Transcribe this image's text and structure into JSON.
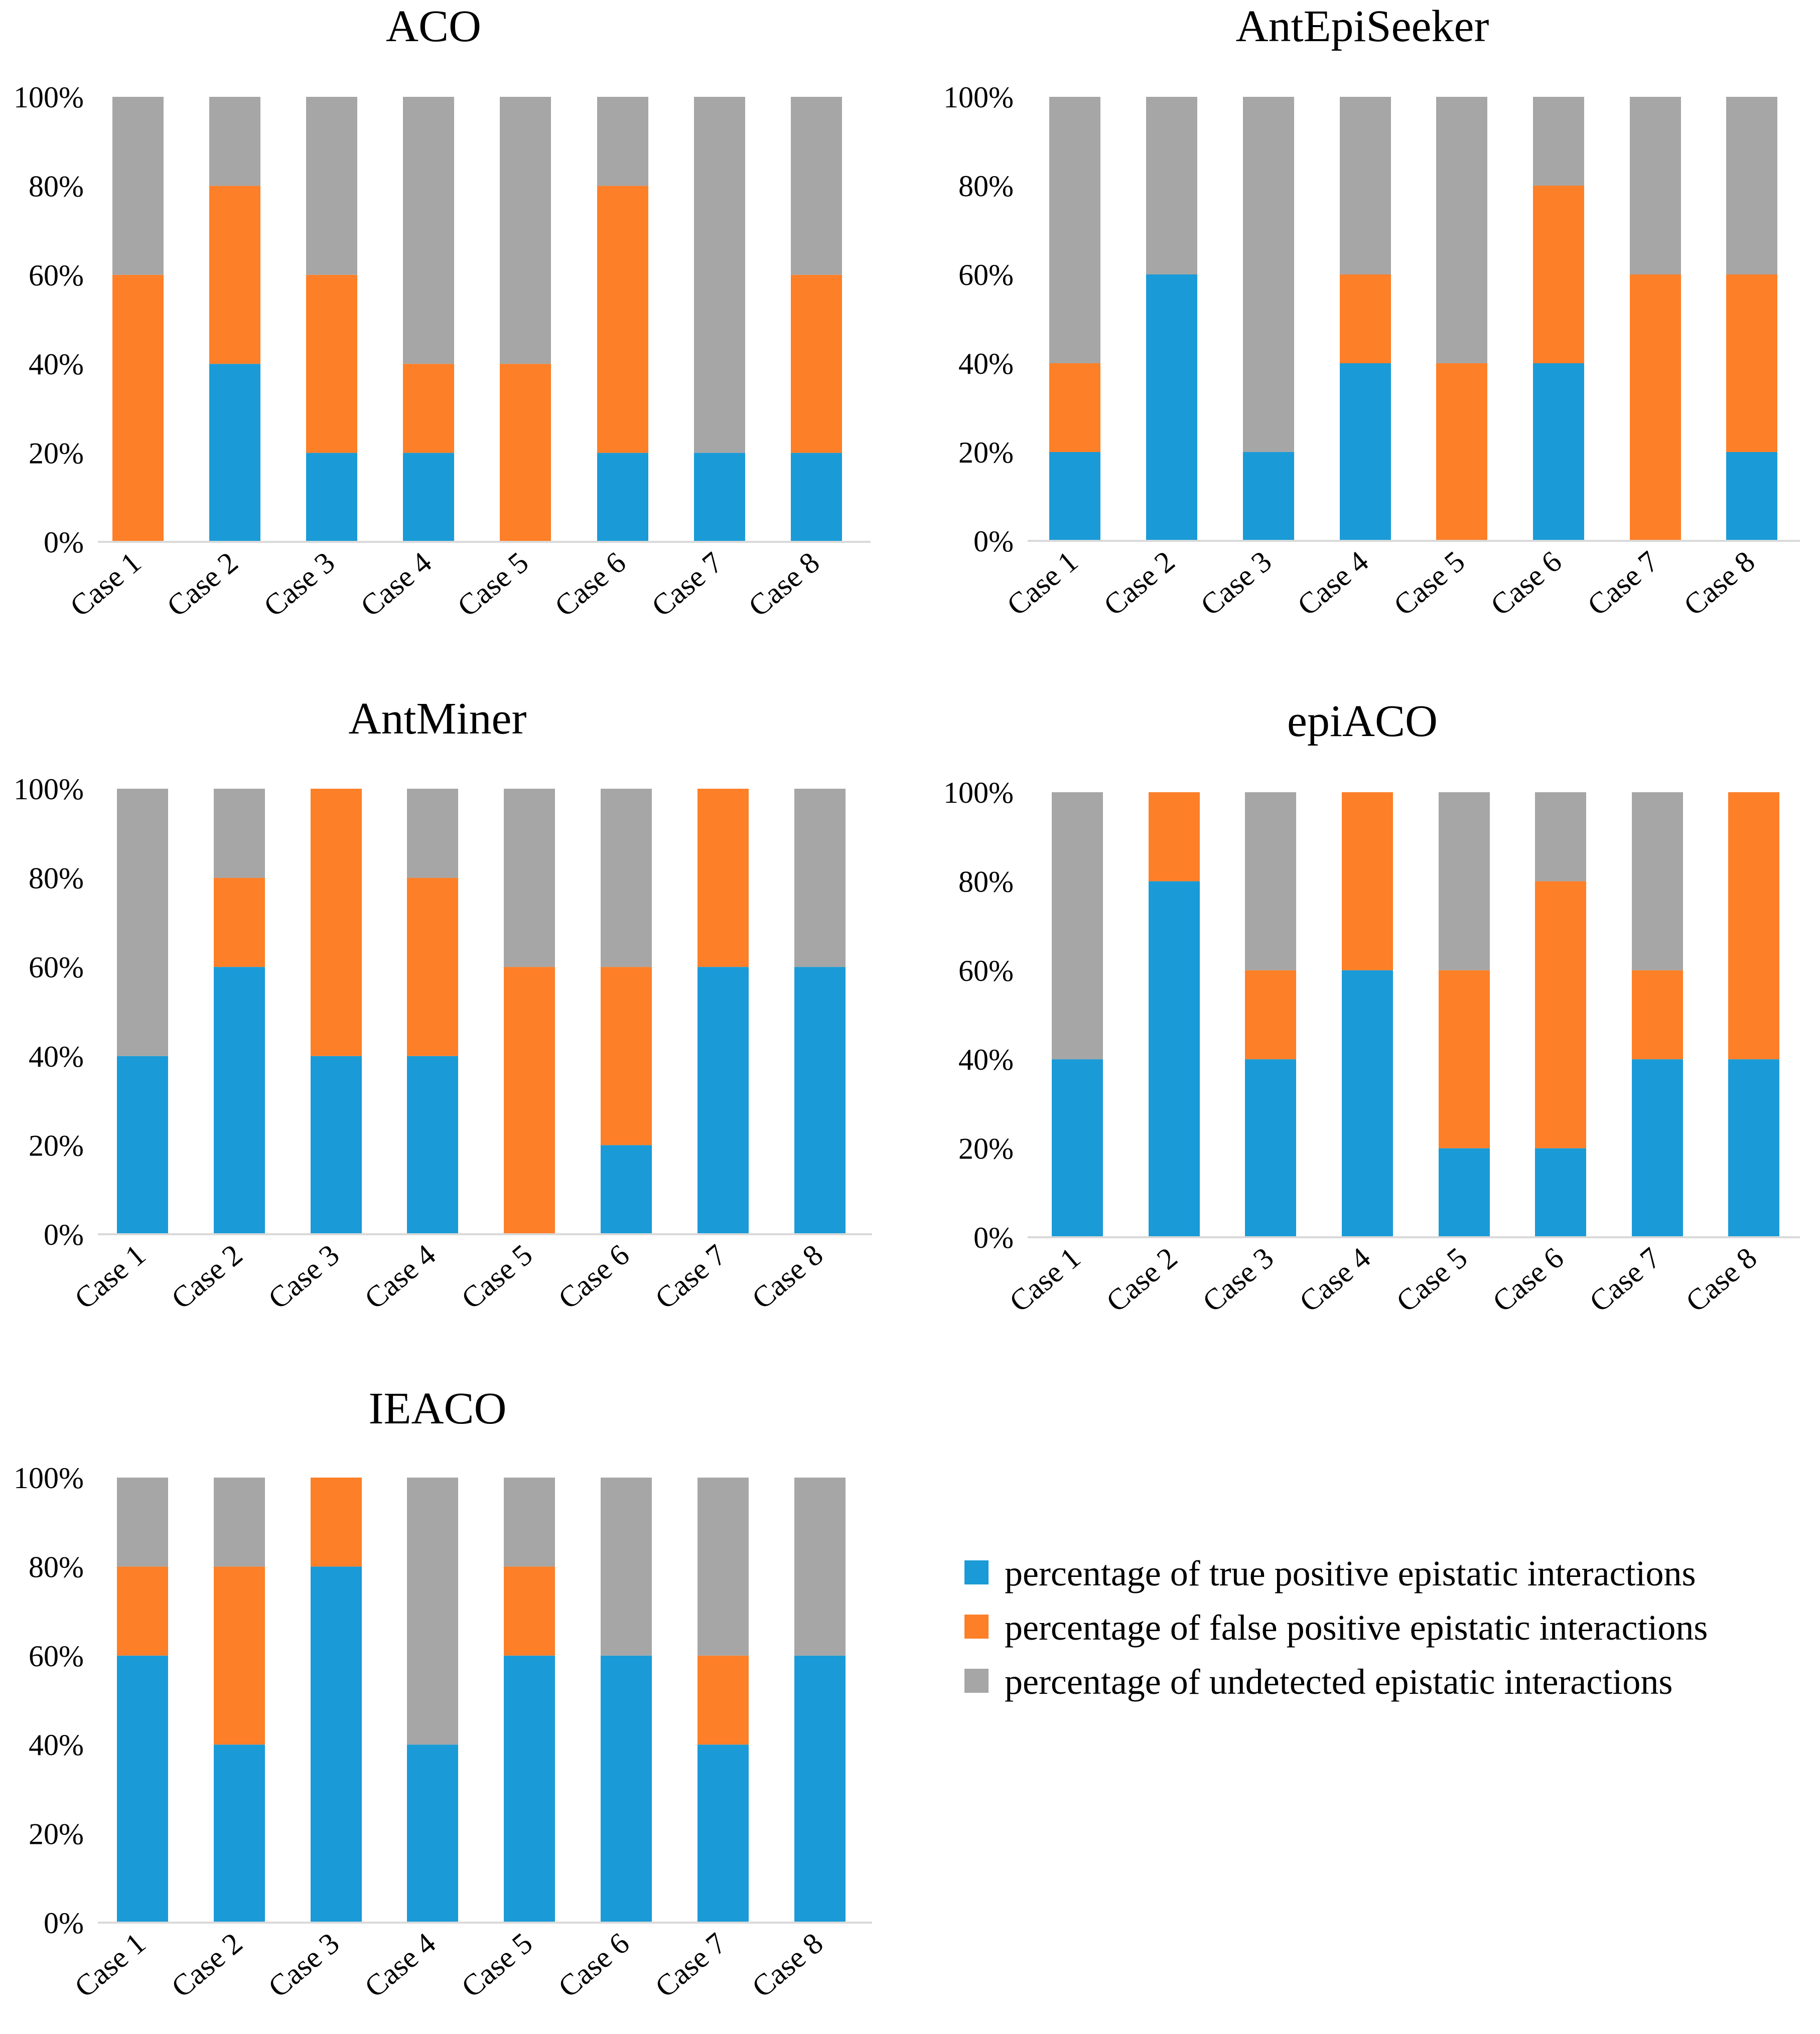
{
  "legend": [
    {
      "label": "percentage of true positive epistatic interactions",
      "color": "#1a9bd7"
    },
    {
      "label": "percentage of false positive epistatic interactions",
      "color": "#fd7f28"
    },
    {
      "label": "percentage of undetected epistatic interactions",
      "color": "#a6a6a6"
    }
  ],
  "chart_data": [
    {
      "type": "bar",
      "stacked": true,
      "title": "ACO",
      "categories": [
        "Case 1",
        "Case 2",
        "Case 3",
        "Case 4",
        "Case 5",
        "Case 6",
        "Case 7",
        "Case 8"
      ],
      "ylim": [
        0,
        100
      ],
      "yticks": [
        "0%",
        "20%",
        "40%",
        "60%",
        "80%",
        "100%"
      ],
      "series": [
        {
          "name": "percentage of true positive epistatic interactions",
          "values": [
            0,
            40,
            20,
            20,
            0,
            20,
            20,
            20
          ]
        },
        {
          "name": "percentage of false positive epistatic interactions",
          "values": [
            60,
            40,
            40,
            20,
            40,
            60,
            0,
            40
          ]
        },
        {
          "name": "percentage of undetected epistatic interactions",
          "values": [
            40,
            20,
            40,
            60,
            60,
            20,
            80,
            40
          ]
        }
      ]
    },
    {
      "type": "bar",
      "stacked": true,
      "title": "AntEpiSeeker",
      "categories": [
        "Case 1",
        "Case 2",
        "Case 3",
        "Case 4",
        "Case 5",
        "Case 6",
        "Case 7",
        "Case 8"
      ],
      "ylim": [
        0,
        100
      ],
      "yticks": [
        "0%",
        "20%",
        "40%",
        "60%",
        "80%",
        "100%"
      ],
      "series": [
        {
          "name": "percentage of true positive epistatic interactions",
          "values": [
            20,
            60,
            20,
            40,
            0,
            40,
            0,
            20
          ]
        },
        {
          "name": "percentage of false positive epistatic interactions",
          "values": [
            20,
            0,
            0,
            20,
            40,
            40,
            60,
            40
          ]
        },
        {
          "name": "percentage of undetected epistatic interactions",
          "values": [
            60,
            40,
            80,
            40,
            60,
            20,
            40,
            40
          ]
        }
      ]
    },
    {
      "type": "bar",
      "stacked": true,
      "title": "AntMiner",
      "categories": [
        "Case 1",
        "Case 2",
        "Case 3",
        "Case 4",
        "Case 5",
        "Case 6",
        "Case 7",
        "Case 8"
      ],
      "ylim": [
        0,
        100
      ],
      "yticks": [
        "0%",
        "20%",
        "40%",
        "60%",
        "80%",
        "100%"
      ],
      "series": [
        {
          "name": "percentage of true positive epistatic interactions",
          "values": [
            40,
            60,
            40,
            40,
            0,
            20,
            60,
            60
          ]
        },
        {
          "name": "percentage of false positive epistatic interactions",
          "values": [
            0,
            20,
            60,
            40,
            60,
            40,
            40,
            0
          ]
        },
        {
          "name": "percentage of undetected epistatic interactions",
          "values": [
            60,
            20,
            0,
            20,
            40,
            40,
            0,
            40
          ]
        }
      ]
    },
    {
      "type": "bar",
      "stacked": true,
      "title": "epiACO",
      "categories": [
        "Case 1",
        "Case 2",
        "Case 3",
        "Case 4",
        "Case 5",
        "Case 6",
        "Case 7",
        "Case 8"
      ],
      "ylim": [
        0,
        100
      ],
      "yticks": [
        "0%",
        "20%",
        "40%",
        "60%",
        "80%",
        "100%"
      ],
      "series": [
        {
          "name": "percentage of true positive epistatic interactions",
          "values": [
            40,
            80,
            40,
            60,
            20,
            20,
            40,
            40
          ]
        },
        {
          "name": "percentage of false positive epistatic interactions",
          "values": [
            0,
            20,
            20,
            40,
            40,
            60,
            20,
            60
          ]
        },
        {
          "name": "percentage of undetected epistatic interactions",
          "values": [
            60,
            0,
            40,
            0,
            40,
            20,
            40,
            0
          ]
        }
      ]
    },
    {
      "type": "bar",
      "stacked": true,
      "title": "IEACO",
      "categories": [
        "Case 1",
        "Case 2",
        "Case 3",
        "Case 4",
        "Case 5",
        "Case 6",
        "Case 7",
        "Case 8"
      ],
      "ylim": [
        0,
        100
      ],
      "yticks": [
        "0%",
        "20%",
        "40%",
        "60%",
        "80%",
        "100%"
      ],
      "series": [
        {
          "name": "percentage of true positive epistatic interactions",
          "values": [
            60,
            40,
            80,
            40,
            60,
            60,
            40,
            60
          ]
        },
        {
          "name": "percentage of false positive epistatic interactions",
          "values": [
            20,
            40,
            20,
            0,
            20,
            0,
            20,
            0
          ]
        },
        {
          "name": "percentage of undetected epistatic interactions",
          "values": [
            20,
            20,
            0,
            60,
            20,
            40,
            40,
            40
          ]
        }
      ]
    }
  ]
}
